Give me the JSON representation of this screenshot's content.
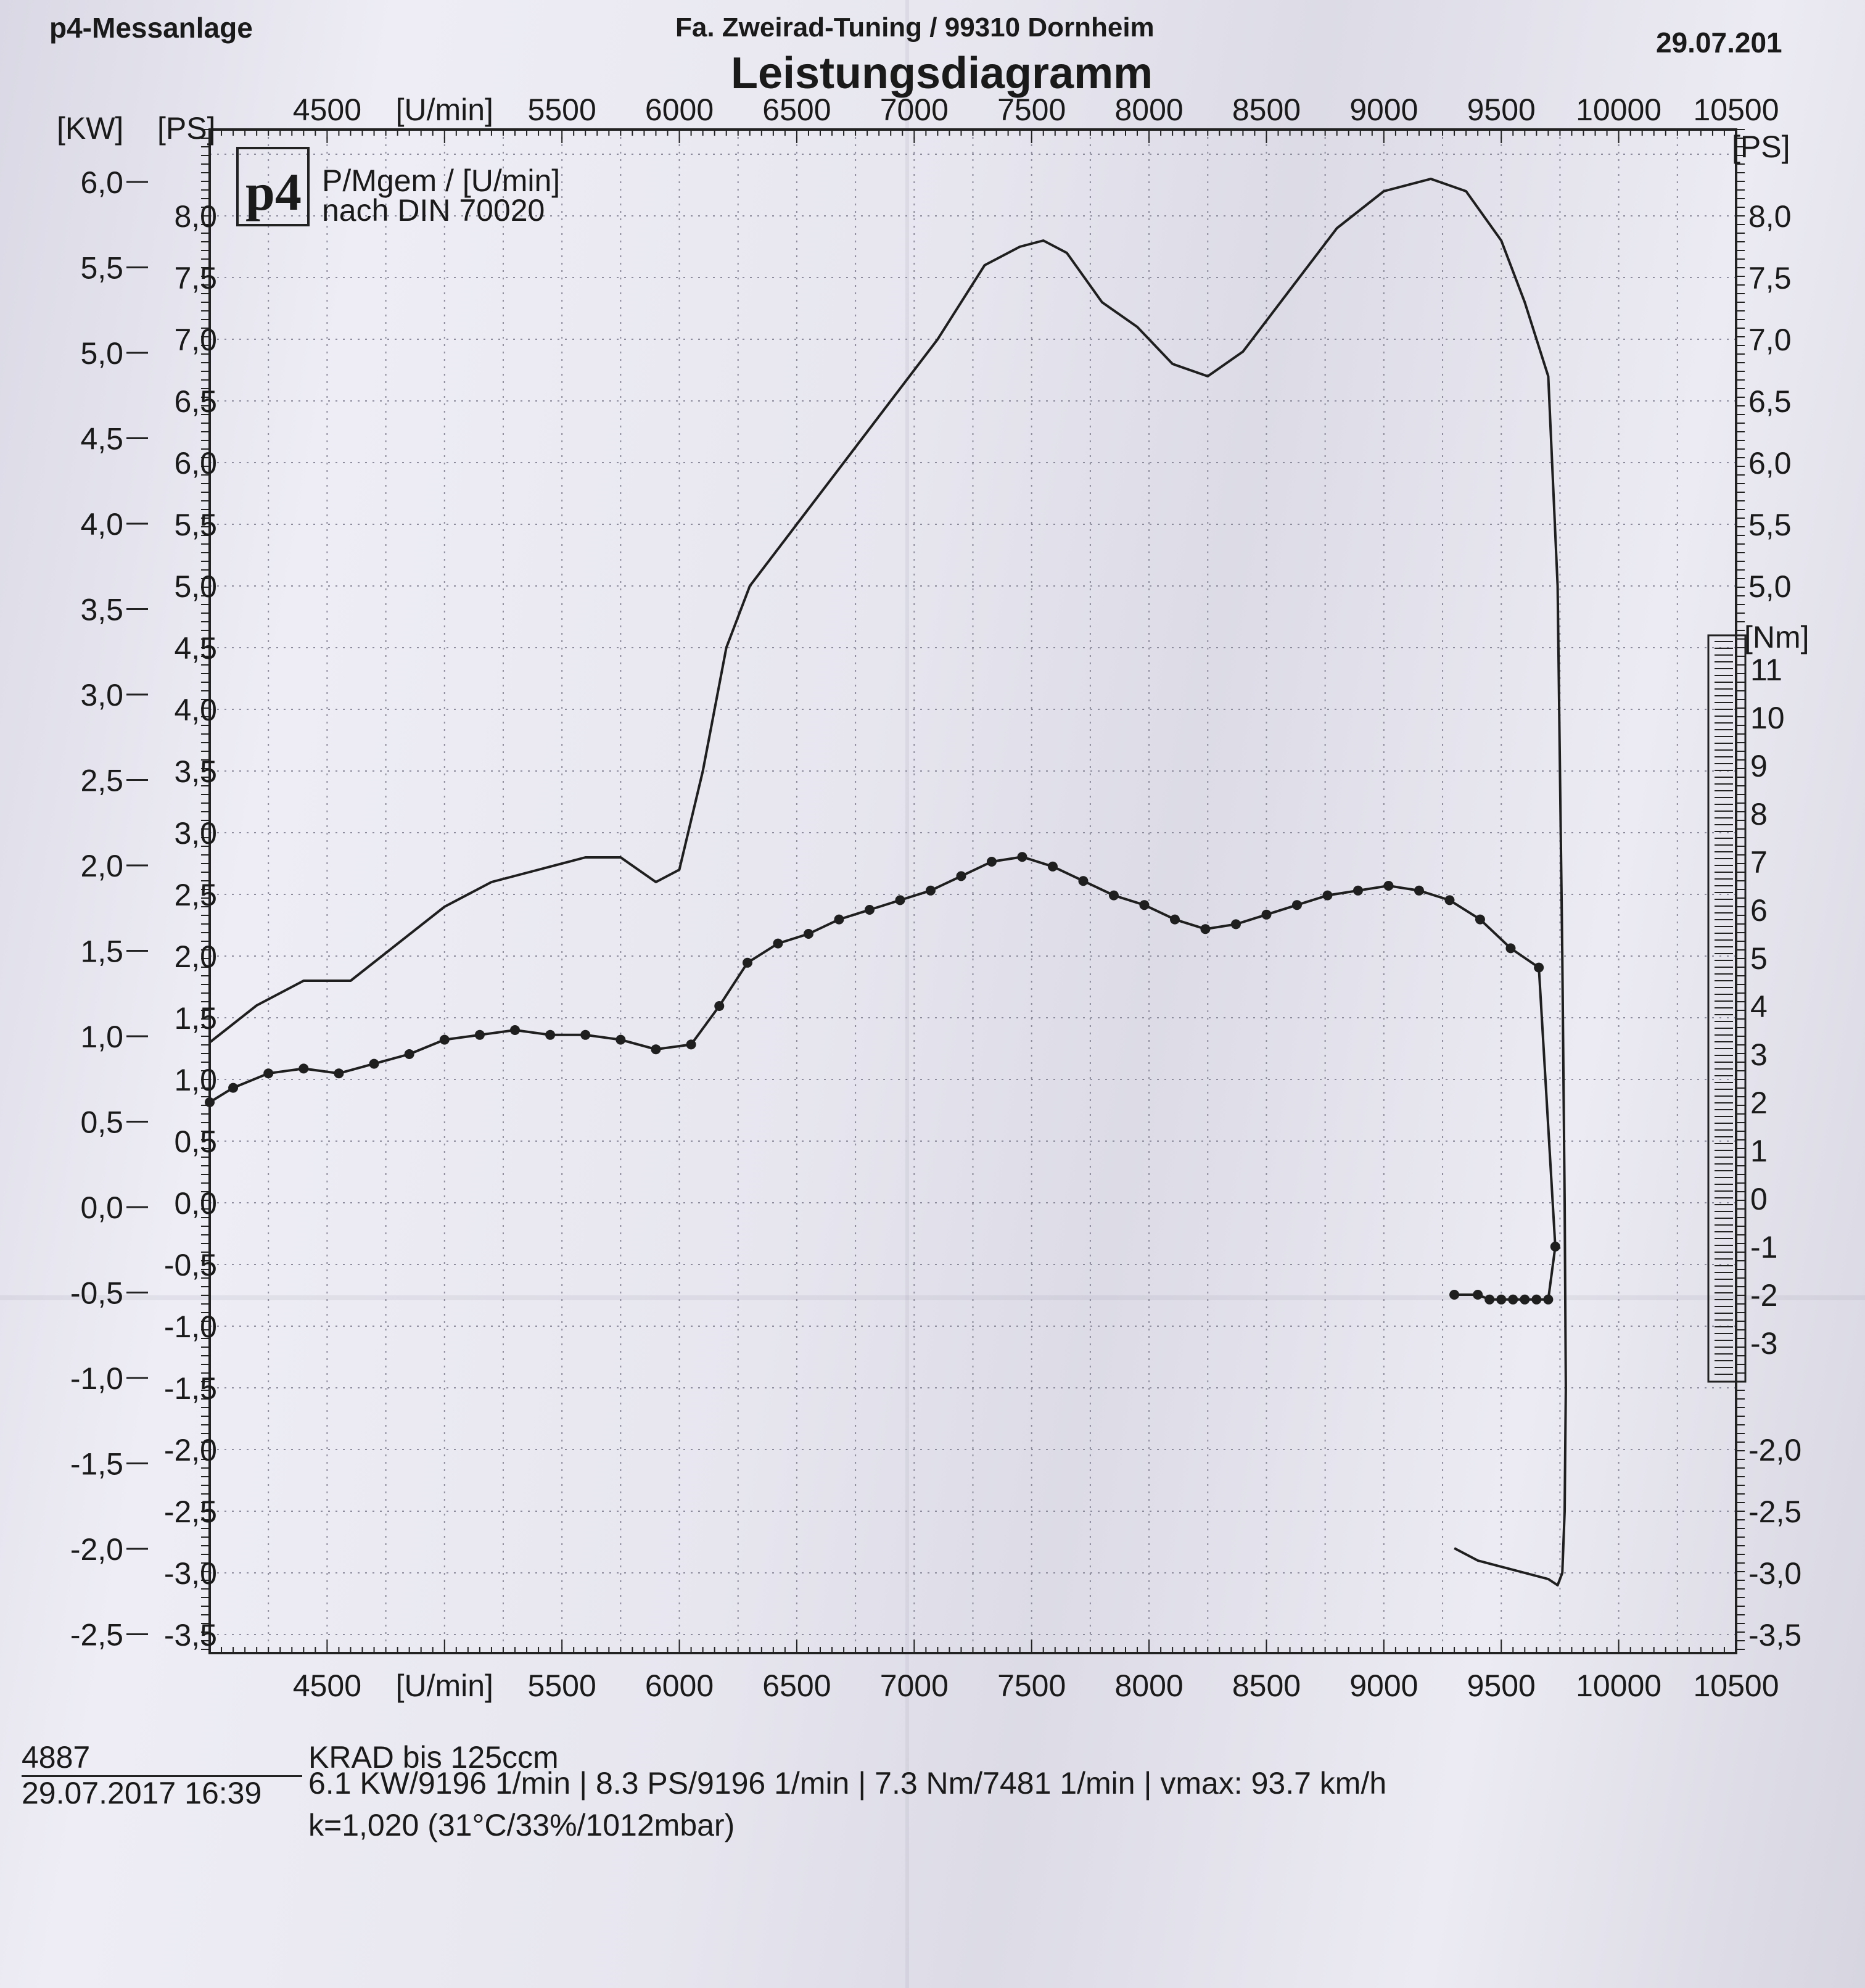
{
  "header": {
    "left": "p4-Messanlage",
    "center": "Fa. Zweirad-Tuning / 99310 Dornheim",
    "right": "29.07.201",
    "title": "Leistungsdiagramm"
  },
  "legend": {
    "logo": "p4",
    "line1": "P/Mgem / [U/min]",
    "line2": "nach DIN 70020"
  },
  "axes": {
    "kw_unit": "[KW]",
    "ps_unit_left": "[PS]",
    "ps_unit_right": "[PS]",
    "nm_unit": "[Nm]",
    "rpm_unit": "[U/min]",
    "rpm_ticks_top": [
      "4500",
      "5500",
      "6000",
      "6500",
      "7000",
      "7500",
      "8000",
      "8500",
      "9000",
      "9500",
      "10000",
      "10500"
    ],
    "rpm_ticks_bottom": [
      "4500",
      "5500",
      "6000",
      "6500",
      "7000",
      "7500",
      "8000",
      "8500",
      "9000",
      "9500",
      "10000",
      "10500"
    ],
    "kw_ticks": [
      "6,0",
      "5,5",
      "5,0",
      "4,5",
      "4,0",
      "3,5",
      "3,0",
      "2,5",
      "2,0",
      "1,5",
      "1,0",
      "0,5",
      "0,0",
      "-0,5",
      "-1,0",
      "-1,5",
      "-2,0",
      "-2,5"
    ],
    "ps_ticks_left": [
      "8,0",
      "7,5",
      "7,0",
      "6,5",
      "6,0",
      "5,5",
      "5,0",
      "4,5",
      "4,0",
      "3,5",
      "3,0",
      "2,5",
      "2,0",
      "1,5",
      "1,0",
      "0,5",
      "0,0",
      "-0,5",
      "-1,0",
      "-1,5",
      "-2,0",
      "-2,5",
      "-3,0",
      "-3,5"
    ],
    "ps_ticks_right": [
      "8,0",
      "7,5",
      "7,0",
      "6,5",
      "6,0",
      "5,5",
      "5,0",
      "-2,0",
      "-2,5",
      "-3,0",
      "-3,5"
    ],
    "nm_ticks": [
      "11",
      "10",
      "9",
      "8",
      "7",
      "6",
      "5",
      "4",
      "3",
      "2",
      "1",
      "0",
      "-1",
      "-2",
      "-3"
    ]
  },
  "chart_data": {
    "type": "line",
    "title": "Leistungsdiagramm",
    "xlabel": "[U/min]",
    "xlim": [
      4000,
      10500
    ],
    "y_axes": {
      "ps": {
        "label": "[PS]",
        "range": [
          -3.5,
          8.5
        ]
      },
      "kw": {
        "label": "[KW]",
        "range": [
          -2.5,
          6.0
        ]
      },
      "nm": {
        "label": "[Nm]",
        "range": [
          -3,
          11
        ]
      }
    },
    "grid": true,
    "series": [
      {
        "axis": "ps",
        "marker": "none",
        "x": [
          4000,
          4200,
          4400,
          4600,
          4800,
          5000,
          5200,
          5400,
          5600,
          5750,
          5900,
          6000,
          6100,
          6200,
          6300,
          6500,
          6700,
          6900,
          7100,
          7300,
          7450,
          7550,
          7650,
          7800,
          7950,
          8100,
          8250,
          8400,
          8600,
          8800,
          9000,
          9200,
          9350,
          9500,
          9600,
          9700,
          9740,
          9760,
          9770,
          9775,
          9770,
          9760,
          9740,
          9700,
          9600,
          9500,
          9400,
          9300
        ],
        "y": [
          1.3,
          1.6,
          1.8,
          1.8,
          2.1,
          2.4,
          2.6,
          2.7,
          2.8,
          2.8,
          2.6,
          2.7,
          3.5,
          4.5,
          5.0,
          5.5,
          6.0,
          6.5,
          7.0,
          7.6,
          7.75,
          7.8,
          7.7,
          7.3,
          7.1,
          6.8,
          6.7,
          6.9,
          7.4,
          7.9,
          8.2,
          8.3,
          8.2,
          7.8,
          7.3,
          6.7,
          5.0,
          2.0,
          0.0,
          -1.5,
          -2.5,
          -3.0,
          -3.1,
          -3.05,
          -3.0,
          -2.95,
          -2.9,
          -2.8
        ]
      },
      {
        "axis": "nm",
        "marker": "dot",
        "x": [
          4000,
          4100,
          4250,
          4400,
          4550,
          4700,
          4850,
          5000,
          5150,
          5300,
          5450,
          5600,
          5750,
          5900,
          6050,
          6170,
          6290,
          6420,
          6550,
          6680,
          6810,
          6940,
          7070,
          7200,
          7330,
          7460,
          7590,
          7720,
          7850,
          7980,
          8110,
          8240,
          8370,
          8500,
          8630,
          8760,
          8890,
          9020,
          9150,
          9280,
          9410,
          9540,
          9660,
          9730,
          9700,
          9650,
          9600,
          9550,
          9500,
          9450,
          9400,
          9300
        ],
        "y": [
          2.0,
          2.3,
          2.6,
          2.7,
          2.6,
          2.8,
          3.0,
          3.3,
          3.4,
          3.5,
          3.4,
          3.4,
          3.3,
          3.1,
          3.2,
          4.0,
          4.9,
          5.3,
          5.5,
          5.8,
          6.0,
          6.2,
          6.4,
          6.7,
          7.0,
          7.1,
          6.9,
          6.6,
          6.3,
          6.1,
          5.8,
          5.6,
          5.7,
          5.9,
          6.1,
          6.3,
          6.4,
          6.5,
          6.4,
          6.2,
          5.8,
          5.2,
          4.8,
          -1.0,
          -2.1,
          -2.1,
          -2.1,
          -2.1,
          -2.1,
          -2.1,
          -2.0,
          -2.0
        ]
      }
    ]
  },
  "footer": {
    "id": "4887",
    "vehicle": "KRAD bis   125ccm",
    "datetime": "29.07.2017  16:39",
    "results": "6.1 KW/9196 1/min  |  8.3 PS/9196 1/min  |  7.3 Nm/7481 1/min | vmax: 93.7 km/h",
    "conditions": "k=1,020 (31°C/33%/1012mbar)"
  }
}
